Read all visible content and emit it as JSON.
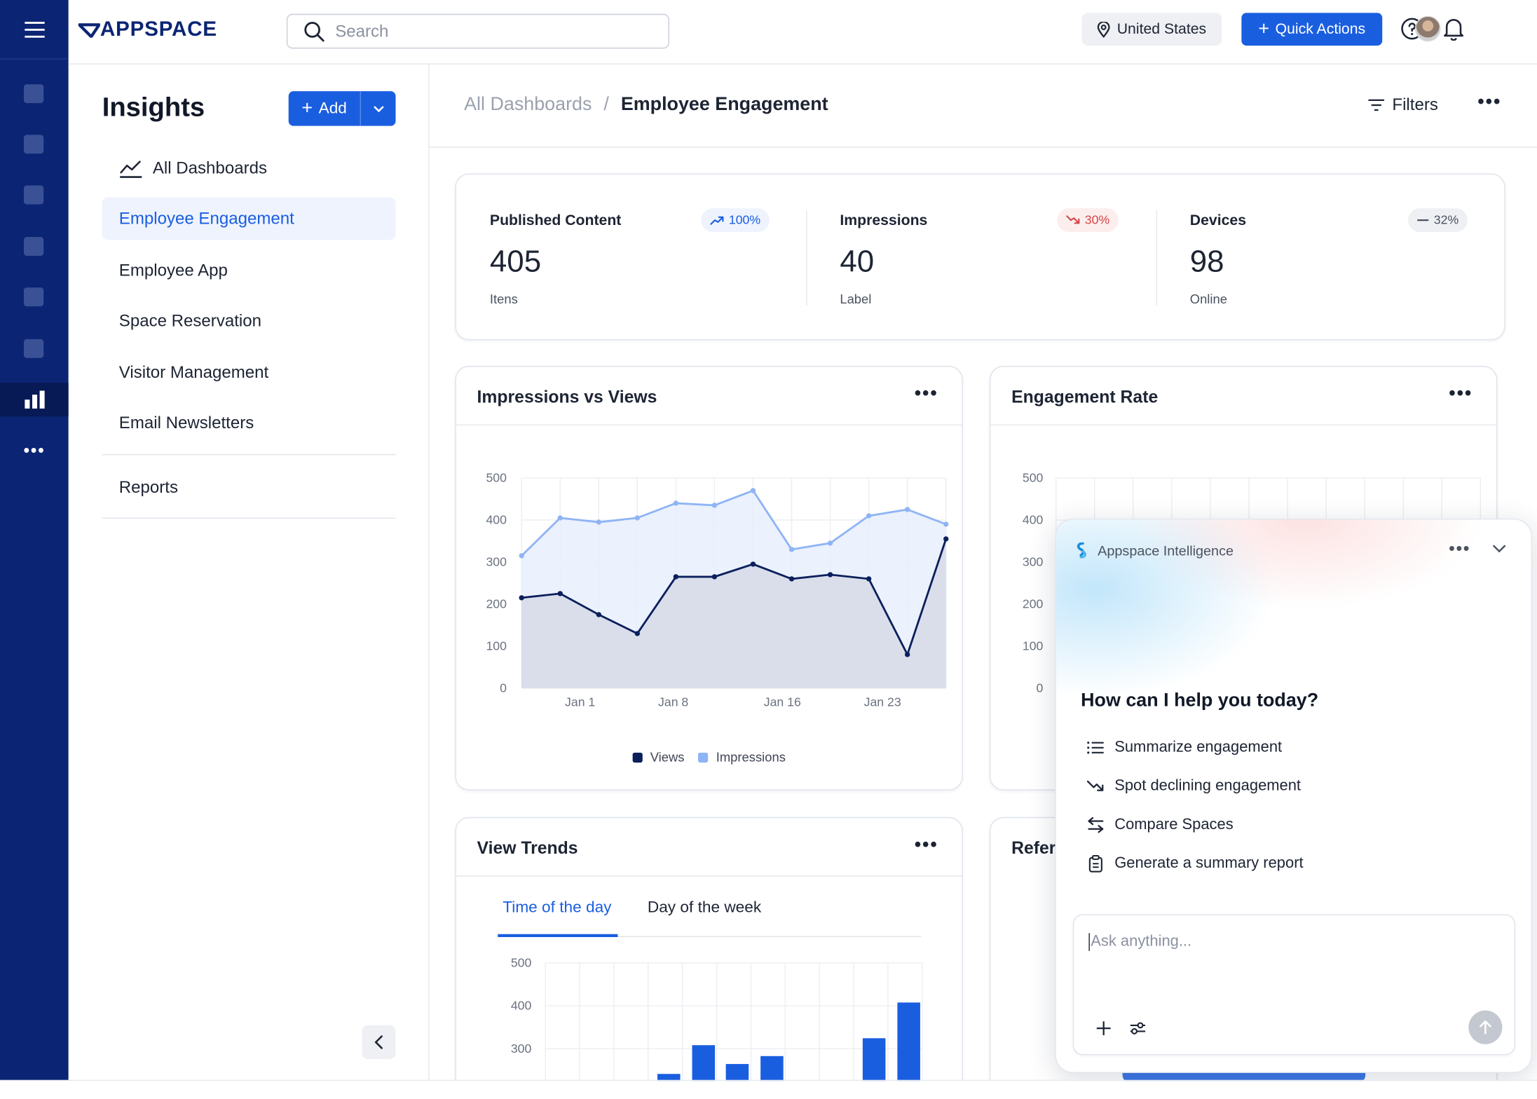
{
  "brand": {
    "logo_text": "APPSPACE"
  },
  "header": {
    "search_placeholder": "Search",
    "region": "United States",
    "quick_actions": "Quick Actions"
  },
  "sidebar": {
    "title": "Insights",
    "add_label": "Add",
    "items": [
      {
        "label": "All Dashboards"
      },
      {
        "label": "Employee Engagement"
      },
      {
        "label": "Employee App"
      },
      {
        "label": "Space Reservation"
      },
      {
        "label": "Visitor Management"
      },
      {
        "label": "Email Newsletters"
      },
      {
        "label": "Reports"
      }
    ]
  },
  "breadcrumb": {
    "root": "All Dashboards",
    "sep": "/",
    "current": "Employee Engagement"
  },
  "toolbar": {
    "filters": "Filters"
  },
  "stats": [
    {
      "label": "Published Content",
      "value": "405",
      "sub": "Itens",
      "badge": "100%",
      "trend": "up"
    },
    {
      "label": "Impressions",
      "value": "40",
      "sub": "Label",
      "badge": "30%",
      "trend": "down"
    },
    {
      "label": "Devices",
      "value": "98",
      "sub": "Online",
      "badge": "32%",
      "trend": "flat"
    }
  ],
  "cards": {
    "impressions_vs_views": "Impressions vs Views",
    "engagement_rate": "Engagement Rate",
    "view_trends": "View Trends",
    "referrers_partial": "Refer"
  },
  "view_trends_tabs": {
    "time_of_day": "Time of the day",
    "day_of_week": "Day of the week"
  },
  "legend": {
    "views": "Views",
    "impressions": "Impressions"
  },
  "colors": {
    "accent": "#1a5ee0",
    "rail": "#0b2574",
    "views": "#0b1f5c",
    "impressions": "#8fb4f5"
  },
  "chart_data": [
    {
      "type": "area",
      "title": "Impressions vs Views",
      "ylim": [
        0,
        500
      ],
      "yticks": [
        "500",
        "400",
        "300",
        "200",
        "100",
        "0"
      ],
      "xticks": [
        "Jan 1",
        "Jan 8",
        "Jan 16",
        "Jan 23"
      ],
      "series": [
        {
          "name": "Impressions",
          "values": [
            315,
            405,
            395,
            405,
            440,
            435,
            470,
            330,
            345,
            410,
            425,
            390
          ]
        },
        {
          "name": "Views",
          "values": [
            215,
            225,
            175,
            130,
            265,
            265,
            295,
            260,
            270,
            260,
            80,
            355
          ]
        }
      ]
    },
    {
      "type": "bar",
      "title": "View Trends",
      "ylim": [
        300,
        500
      ],
      "yticks": [
        "500",
        "400",
        "300"
      ],
      "values": [
        0,
        0,
        0,
        0,
        0,
        0,
        0,
        0,
        0,
        0,
        0,
        0
      ]
    },
    {
      "type": "line",
      "title": "Engagement Rate",
      "yticks": [
        "500",
        "400",
        "300",
        "200",
        "100",
        "0"
      ]
    }
  ],
  "assistant": {
    "title": "Appspace Intelligence",
    "question": "How can I help you today?",
    "suggestions": [
      {
        "label": "Summarize engagement",
        "icon": "list-icon"
      },
      {
        "label": "Spot declining engagement",
        "icon": "trend-down-icon"
      },
      {
        "label": "Compare Spaces",
        "icon": "swap-icon"
      },
      {
        "label": "Generate a summary report",
        "icon": "clipboard-icon"
      }
    ],
    "placeholder": "Ask anything..."
  }
}
